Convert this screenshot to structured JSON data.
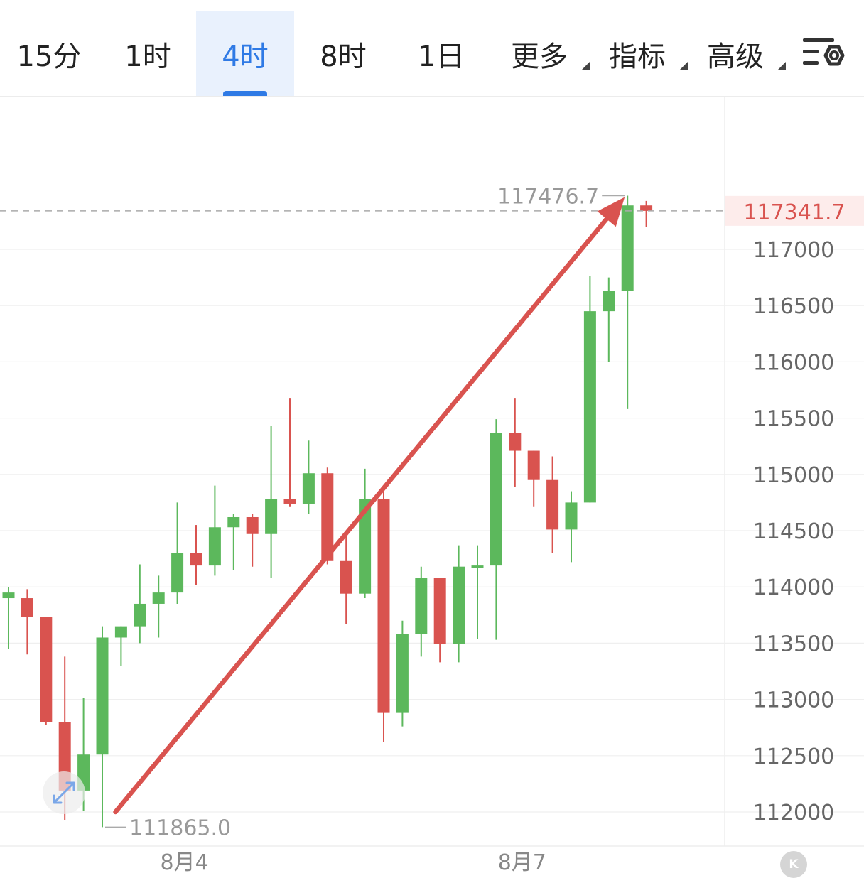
{
  "toolbar": {
    "tabs": [
      {
        "label": "15分",
        "active": false,
        "dropdown": false
      },
      {
        "label": "1时",
        "active": false,
        "dropdown": false
      },
      {
        "label": "4时",
        "active": true,
        "dropdown": false
      },
      {
        "label": "8时",
        "active": false,
        "dropdown": false
      },
      {
        "label": "1日",
        "active": false,
        "dropdown": false
      },
      {
        "label": "更多",
        "active": false,
        "dropdown": true
      },
      {
        "label": "指标",
        "active": false,
        "dropdown": true
      },
      {
        "label": "高级",
        "active": false,
        "dropdown": true
      }
    ],
    "settings_icon": "settings-gear-icon"
  },
  "colors": {
    "up": "#5cb85c",
    "down": "#d9534f",
    "accent": "#2f7ae5",
    "arrow": "#d9534f",
    "current_price": "#d9534f"
  },
  "chart_data": {
    "type": "candlestick",
    "ylim": [
      111600,
      118750
    ],
    "y_ticks": [
      117000,
      116500,
      116000,
      115500,
      115000,
      114500,
      114000,
      113500,
      113000,
      112500,
      112000
    ],
    "x_labels": [
      {
        "label": "8月4",
        "index": 9
      },
      {
        "label": "8月7",
        "index": 27
      }
    ],
    "candles": [
      {
        "o": 113900,
        "h": 114000,
        "l": 113450,
        "c": 113950
      },
      {
        "o": 113900,
        "h": 113980,
        "l": 113400,
        "c": 113730
      },
      {
        "o": 113730,
        "h": 113730,
        "l": 112770,
        "c": 112800
      },
      {
        "o": 112800,
        "h": 113380,
        "l": 111930,
        "c": 112190
      },
      {
        "o": 112190,
        "h": 113010,
        "l": 112010,
        "c": 112510
      },
      {
        "o": 112510,
        "h": 113650,
        "l": 111865,
        "c": 113550
      },
      {
        "o": 113550,
        "h": 113650,
        "l": 113300,
        "c": 113650
      },
      {
        "o": 113650,
        "h": 114200,
        "l": 113500,
        "c": 113850
      },
      {
        "o": 113850,
        "h": 114100,
        "l": 113550,
        "c": 113950
      },
      {
        "o": 113950,
        "h": 114750,
        "l": 113850,
        "c": 114300
      },
      {
        "o": 114300,
        "h": 114550,
        "l": 114020,
        "c": 114190
      },
      {
        "o": 114190,
        "h": 114900,
        "l": 114100,
        "c": 114530
      },
      {
        "o": 114530,
        "h": 114650,
        "l": 114150,
        "c": 114620
      },
      {
        "o": 114620,
        "h": 114650,
        "l": 114180,
        "c": 114470
      },
      {
        "o": 114470,
        "h": 115430,
        "l": 114080,
        "c": 114780
      },
      {
        "o": 114780,
        "h": 115680,
        "l": 114710,
        "c": 114740
      },
      {
        "o": 114740,
        "h": 115300,
        "l": 114650,
        "c": 115010
      },
      {
        "o": 115010,
        "h": 115060,
        "l": 114200,
        "c": 114230
      },
      {
        "o": 114230,
        "h": 114470,
        "l": 113670,
        "c": 113940
      },
      {
        "o": 113940,
        "h": 115050,
        "l": 113900,
        "c": 114780
      },
      {
        "o": 114780,
        "h": 114870,
        "l": 112620,
        "c": 112880
      },
      {
        "o": 112880,
        "h": 113700,
        "l": 112760,
        "c": 113580
      },
      {
        "o": 113580,
        "h": 114180,
        "l": 113380,
        "c": 114080
      },
      {
        "o": 114080,
        "h": 114080,
        "l": 113330,
        "c": 113490
      },
      {
        "o": 113490,
        "h": 114370,
        "l": 113330,
        "c": 114180
      },
      {
        "o": 114180,
        "h": 114370,
        "l": 113540,
        "c": 114190
      },
      {
        "o": 114190,
        "h": 115490,
        "l": 113530,
        "c": 115370
      },
      {
        "o": 115370,
        "h": 115680,
        "l": 114890,
        "c": 115210
      },
      {
        "o": 115210,
        "h": 115210,
        "l": 114710,
        "c": 114950
      },
      {
        "o": 114950,
        "h": 115160,
        "l": 114300,
        "c": 114510
      },
      {
        "o": 114510,
        "h": 114850,
        "l": 114220,
        "c": 114750
      },
      {
        "o": 114750,
        "h": 116760,
        "l": 114750,
        "c": 116450
      },
      {
        "o": 116450,
        "h": 116750,
        "l": 116000,
        "c": 116630
      },
      {
        "o": 116630,
        "h": 117476.7,
        "l": 115580,
        "c": 117390
      },
      {
        "o": 117390,
        "h": 117430,
        "l": 117200,
        "c": 117341.7
      }
    ],
    "high_marker": {
      "label": "117476.7",
      "value": 117476.7,
      "index": 33
    },
    "low_marker": {
      "label": "111865.0",
      "value": 111865,
      "index": 5
    },
    "current_price": {
      "label": "117341.7",
      "value": 117341.7
    },
    "arrow": {
      "from": {
        "index": 5.7,
        "value": 112000
      },
      "to": {
        "index": 33,
        "value": 117476.7
      }
    }
  }
}
